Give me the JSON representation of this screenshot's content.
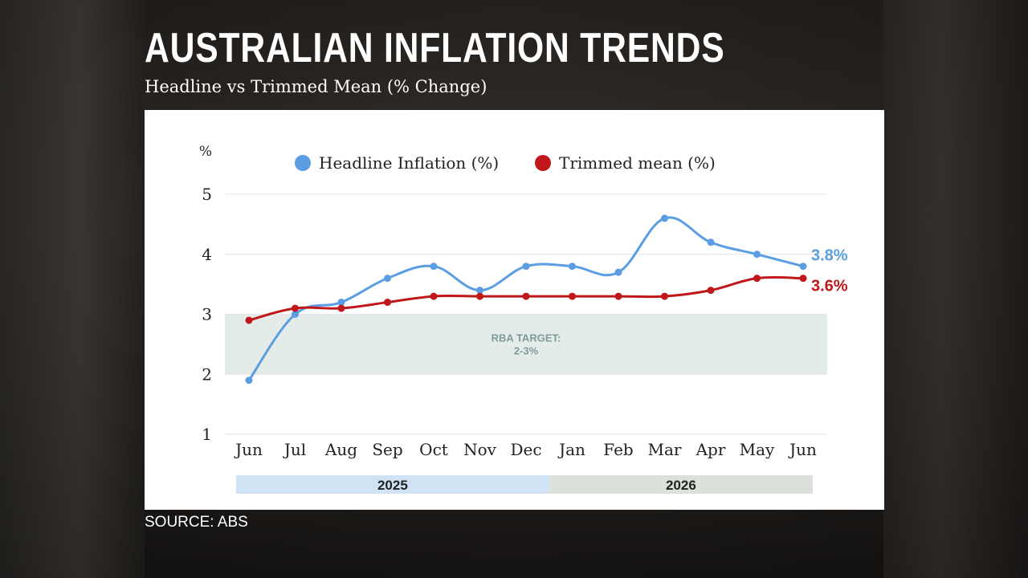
{
  "title": "AUSTRALIAN INFLATION TRENDS",
  "subtitle": "Headline vs Trimmed Mean (% Change)",
  "source": "SOURCE: ABS",
  "colors": {
    "headline": "#5b9de3",
    "trimmed": "#c0171b",
    "band": "#e3ece9",
    "year_2025": "#cfe3f5",
    "year_2026": "#d9e1da"
  },
  "chart_data": {
    "type": "line",
    "unit_label": "%",
    "categories": [
      "Jun",
      "Jul",
      "Aug",
      "Sep",
      "Oct",
      "Nov",
      "Dec",
      "Jan",
      "Feb",
      "Mar",
      "Apr",
      "May",
      "Jun"
    ],
    "series": [
      {
        "name": "Headline Inflation (%)",
        "values": [
          1.9,
          3.0,
          3.2,
          3.6,
          3.8,
          3.4,
          3.8,
          3.8,
          3.7,
          4.6,
          4.2,
          4.0,
          3.8
        ],
        "end_label": "3.8%"
      },
      {
        "name": "Trimmed mean (%)",
        "values": [
          2.9,
          3.1,
          3.1,
          3.2,
          3.3,
          3.3,
          3.3,
          3.3,
          3.3,
          3.3,
          3.4,
          3.6,
          3.6
        ],
        "end_label": "3.6%"
      }
    ],
    "ylim": [
      1,
      5
    ],
    "yticks": [
      "1",
      "2",
      "3",
      "4",
      "5"
    ],
    "target_band": {
      "from": 2,
      "to": 3,
      "label_line1": "RBA TARGET:",
      "label_line2": "2-3%"
    },
    "year_bands": [
      {
        "label": "2025",
        "from_index": 0,
        "to_index": 6
      },
      {
        "label": "2026",
        "from_index": 7,
        "to_index": 12
      }
    ],
    "legend_position": "top",
    "grid": true
  }
}
